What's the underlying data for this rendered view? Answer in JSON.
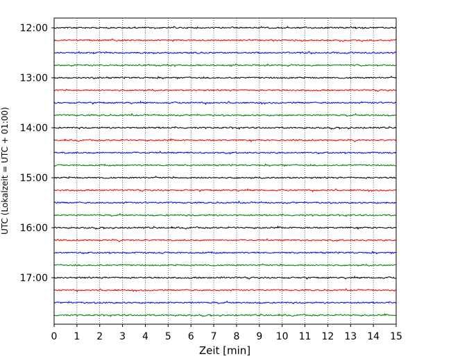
{
  "chart_data": {
    "type": "line",
    "title": "",
    "xlabel": "Zeit  [min]",
    "ylabel": "UTC (Lokalzeit = UTC + 01:00)",
    "xlim": [
      0,
      15
    ],
    "x_ticks": [
      "0",
      "1",
      "2",
      "3",
      "4",
      "5",
      "6",
      "7",
      "8",
      "9",
      "10",
      "11",
      "12",
      "13",
      "14",
      "15"
    ],
    "grid": "vertical dotted",
    "legend": "none",
    "y_ticks": [
      "12:00",
      "13:00",
      "14:00",
      "15:00",
      "16:00",
      "17:00"
    ],
    "trace_interval_minutes": 15,
    "trace_start": "12:00",
    "trace_count": 24,
    "trace_colors": [
      "#000000",
      "#ff0000",
      "#0000ff",
      "#007f00"
    ],
    "series_description": "helicorder seismogram traces, one per 15 minutes, colors cycling black/red/blue/green"
  }
}
